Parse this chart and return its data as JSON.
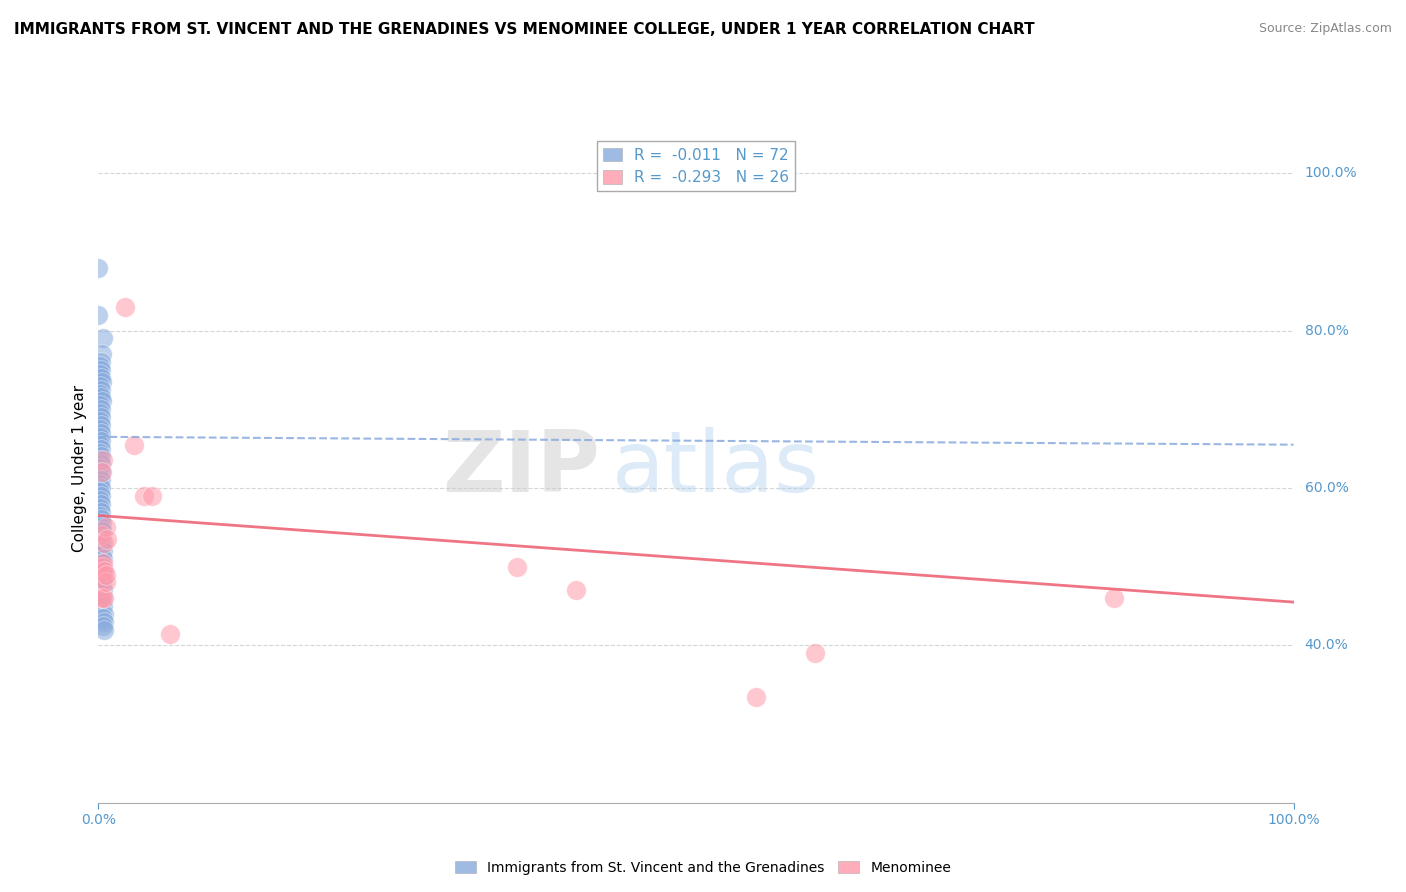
{
  "title": "IMMIGRANTS FROM ST. VINCENT AND THE GRENADINES VS MENOMINEE COLLEGE, UNDER 1 YEAR CORRELATION CHART",
  "source": "Source: ZipAtlas.com",
  "ylabel": "College, Under 1 year",
  "xlim": [
    0.0,
    1.0
  ],
  "ylim": [
    0.2,
    1.05
  ],
  "legend1_r": "-0.011",
  "legend1_n": "72",
  "legend2_r": "-0.293",
  "legend2_n": "26",
  "blue_color": "#88AADD",
  "pink_color": "#FF99AA",
  "blue_line_color": "#88AADD",
  "pink_line_color": "#EE6677",
  "watermark_zip": "ZIP",
  "watermark_atlas": "atlas",
  "blue_scatter": [
    [
      0.0,
      0.88
    ],
    [
      0.0,
      0.82
    ],
    [
      0.004,
      0.79
    ],
    [
      0.003,
      0.77
    ],
    [
      0.002,
      0.76
    ],
    [
      0.001,
      0.755
    ],
    [
      0.002,
      0.75
    ],
    [
      0.001,
      0.745
    ],
    [
      0.002,
      0.74
    ],
    [
      0.003,
      0.735
    ],
    [
      0.001,
      0.73
    ],
    [
      0.002,
      0.725
    ],
    [
      0.001,
      0.72
    ],
    [
      0.002,
      0.715
    ],
    [
      0.003,
      0.71
    ],
    [
      0.001,
      0.705
    ],
    [
      0.002,
      0.7
    ],
    [
      0.001,
      0.695
    ],
    [
      0.002,
      0.69
    ],
    [
      0.001,
      0.685
    ],
    [
      0.002,
      0.68
    ],
    [
      0.001,
      0.675
    ],
    [
      0.002,
      0.67
    ],
    [
      0.001,
      0.665
    ],
    [
      0.002,
      0.66
    ],
    [
      0.001,
      0.655
    ],
    [
      0.002,
      0.65
    ],
    [
      0.001,
      0.645
    ],
    [
      0.002,
      0.64
    ],
    [
      0.001,
      0.635
    ],
    [
      0.002,
      0.63
    ],
    [
      0.001,
      0.625
    ],
    [
      0.002,
      0.62
    ],
    [
      0.001,
      0.615
    ],
    [
      0.002,
      0.61
    ],
    [
      0.001,
      0.605
    ],
    [
      0.002,
      0.6
    ],
    [
      0.001,
      0.595
    ],
    [
      0.002,
      0.59
    ],
    [
      0.001,
      0.585
    ],
    [
      0.002,
      0.58
    ],
    [
      0.001,
      0.575
    ],
    [
      0.002,
      0.57
    ],
    [
      0.001,
      0.565
    ],
    [
      0.002,
      0.56
    ],
    [
      0.003,
      0.555
    ],
    [
      0.002,
      0.55
    ],
    [
      0.003,
      0.545
    ],
    [
      0.002,
      0.54
    ],
    [
      0.003,
      0.535
    ],
    [
      0.002,
      0.53
    ],
    [
      0.003,
      0.525
    ],
    [
      0.004,
      0.52
    ],
    [
      0.003,
      0.515
    ],
    [
      0.004,
      0.51
    ],
    [
      0.003,
      0.505
    ],
    [
      0.004,
      0.5
    ],
    [
      0.003,
      0.495
    ],
    [
      0.004,
      0.49
    ],
    [
      0.003,
      0.485
    ],
    [
      0.004,
      0.48
    ],
    [
      0.003,
      0.475
    ],
    [
      0.004,
      0.47
    ],
    [
      0.003,
      0.465
    ],
    [
      0.004,
      0.46
    ],
    [
      0.003,
      0.455
    ],
    [
      0.004,
      0.45
    ],
    [
      0.005,
      0.44
    ],
    [
      0.004,
      0.435
    ],
    [
      0.005,
      0.43
    ],
    [
      0.004,
      0.425
    ],
    [
      0.005,
      0.42
    ]
  ],
  "pink_scatter": [
    [
      0.002,
      0.54
    ],
    [
      0.001,
      0.5
    ],
    [
      0.003,
      0.48
    ],
    [
      0.002,
      0.46
    ],
    [
      0.004,
      0.635
    ],
    [
      0.003,
      0.62
    ],
    [
      0.004,
      0.5
    ],
    [
      0.003,
      0.46
    ],
    [
      0.005,
      0.53
    ],
    [
      0.004,
      0.505
    ],
    [
      0.005,
      0.46
    ],
    [
      0.006,
      0.55
    ],
    [
      0.005,
      0.495
    ],
    [
      0.006,
      0.48
    ],
    [
      0.007,
      0.535
    ],
    [
      0.006,
      0.49
    ],
    [
      0.022,
      0.83
    ],
    [
      0.03,
      0.655
    ],
    [
      0.038,
      0.59
    ],
    [
      0.045,
      0.59
    ],
    [
      0.06,
      0.415
    ],
    [
      0.35,
      0.5
    ],
    [
      0.4,
      0.47
    ],
    [
      0.55,
      0.335
    ],
    [
      0.6,
      0.39
    ],
    [
      0.85,
      0.46
    ]
  ],
  "blue_trend_x": [
    0.0,
    1.0
  ],
  "blue_trend_y": [
    0.665,
    0.655
  ],
  "pink_trend_x": [
    0.0,
    1.0
  ],
  "pink_trend_y": [
    0.565,
    0.455
  ],
  "ytick_positions": [
    0.4,
    0.6,
    0.8,
    1.0
  ],
  "ytick_labels": [
    "40.0%",
    "60.0%",
    "80.0%",
    "100.0%"
  ],
  "xtick_positions": [
    0.0,
    1.0
  ],
  "xtick_labels": [
    "0.0%",
    "100.0%"
  ],
  "tick_color": "#5599CC",
  "bg_color": "#FFFFFF",
  "grid_color": "#CCCCCC"
}
